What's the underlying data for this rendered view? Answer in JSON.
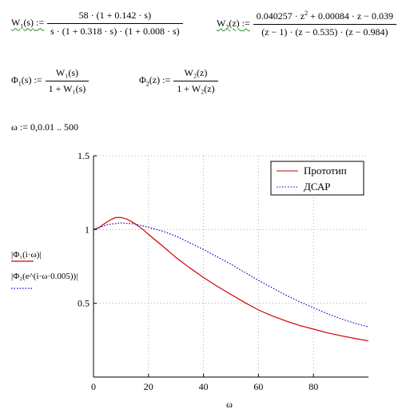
{
  "equations": {
    "w1": {
      "lhs": "W",
      "sub": "1",
      "arg": "(s)",
      "assign": ":=",
      "numerator": "58 · (1 + 0.142 · s)",
      "denominator": "s · (1 + 0.318 · s) · (1 + 0.008 · s)"
    },
    "w2": {
      "lhs": "W",
      "sub": "2",
      "arg": "(z)",
      "assign": ":=",
      "num_a": "0.040257 · z",
      "num_sup": "2",
      "num_b": " + 0.00084 · z − 0.039",
      "denominator": "(z − 1) · (z − 0.535) · (z − 0.984)"
    },
    "phi1": {
      "lhs": "Φ",
      "sub": "1",
      "arg": "(s)",
      "assign": ":=",
      "numerator": "W₁(s)",
      "denominator": "1 + W₁(s)"
    },
    "phi2": {
      "lhs": "Φ",
      "sub": "2",
      "arg": "(z)",
      "assign": ":=",
      "numerator": "W₂(z)",
      "denominator": "1 + W₂(z)"
    },
    "omega": "ω := 0,0.01 .. 500"
  },
  "colors": {
    "prototype": "#d00000",
    "dsar": "#0000c0",
    "axis": "#000000",
    "grid": "#a0a0a0"
  },
  "chart_data": {
    "type": "line",
    "xlabel": "ω",
    "ylabel_1": "|Φ₁(i·ω)|",
    "ylabel_2": "|Φ₂(e^(i·ω·0.005))|",
    "xlim": [
      0,
      100
    ],
    "ylim": [
      0,
      1.5
    ],
    "x_ticks": [
      0,
      20,
      40,
      60,
      80
    ],
    "y_ticks": [
      0.5,
      1,
      1.5
    ],
    "x_tick_labels": [
      "0",
      "20",
      "40",
      "60",
      "80"
    ],
    "y_tick_labels": [
      "0.5",
      "1",
      "1.5"
    ],
    "legend_position": "top-right",
    "series": [
      {
        "name": "Прототип",
        "style": "solid",
        "x": [
          0,
          2,
          4,
          6,
          8,
          10,
          12,
          14,
          16,
          18,
          20,
          25,
          30,
          35,
          40,
          45,
          50,
          55,
          60,
          65,
          70,
          75,
          80,
          85,
          90,
          95,
          100
        ],
        "y": [
          1.0,
          1.013,
          1.04,
          1.064,
          1.081,
          1.082,
          1.071,
          1.052,
          1.028,
          1.0,
          0.967,
          0.89,
          0.81,
          0.74,
          0.675,
          0.615,
          0.56,
          0.505,
          0.455,
          0.415,
          0.38,
          0.35,
          0.325,
          0.3,
          0.28,
          0.262,
          0.245
        ]
      },
      {
        "name": "ДСАР",
        "style": "dotted",
        "x": [
          0,
          5,
          10,
          15,
          20,
          25,
          30,
          35,
          40,
          45,
          50,
          55,
          60,
          65,
          70,
          75,
          80,
          85,
          90,
          95,
          100
        ],
        "y": [
          1.0,
          1.033,
          1.045,
          1.038,
          1.015,
          0.99,
          0.955,
          0.91,
          0.865,
          0.815,
          0.765,
          0.71,
          0.655,
          0.605,
          0.555,
          0.51,
          0.47,
          0.43,
          0.395,
          0.365,
          0.34
        ]
      }
    ]
  }
}
